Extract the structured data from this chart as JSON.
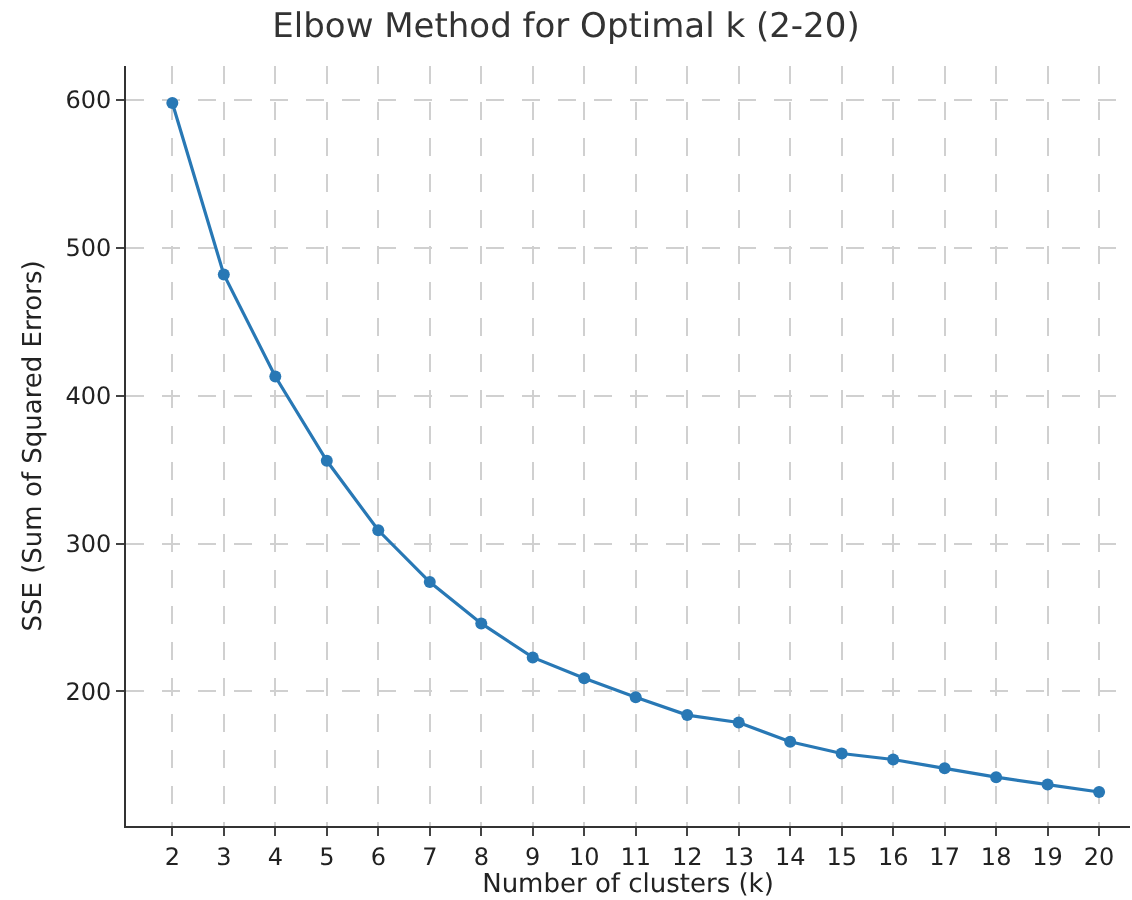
{
  "chart_data": {
    "type": "line",
    "title": "Elbow Method for Optimal k (2-20)",
    "xlabel": "Number of clusters (k)",
    "ylabel": "SSE (Sum of Squared Errors)",
    "x": [
      2,
      3,
      4,
      5,
      6,
      7,
      8,
      9,
      10,
      11,
      12,
      13,
      14,
      15,
      16,
      17,
      18,
      19,
      20
    ],
    "series": [
      {
        "color": "#2878b5",
        "values": [
          598,
          482,
          413,
          356,
          309,
          274,
          246,
          223,
          209,
          196,
          184,
          179,
          166,
          158,
          154,
          148,
          142,
          137,
          132
        ]
      }
    ],
    "xlim": [
      1.1,
      20.6
    ],
    "xticks": [
      2,
      3,
      4,
      5,
      6,
      7,
      8,
      9,
      10,
      11,
      12,
      13,
      14,
      15,
      16,
      17,
      18,
      19,
      20
    ],
    "ylim": [
      109,
      623
    ],
    "yticks": [
      200,
      300,
      400,
      500,
      600
    ],
    "grid": true,
    "marker": "circle",
    "line_style": "solid",
    "legend": false
  }
}
